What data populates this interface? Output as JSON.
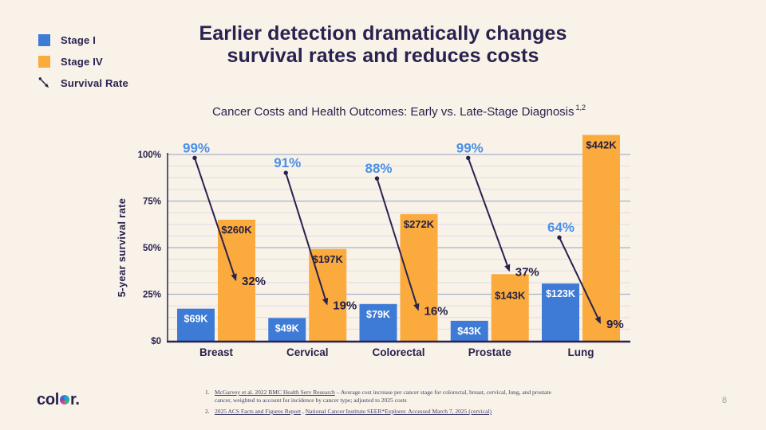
{
  "slide": {
    "title_lines": [
      "Earlier detection dramatically changes",
      "survival rates and reduces costs"
    ],
    "page_number": "8",
    "logo": {
      "part1": "col",
      "part2": "r."
    }
  },
  "legend": {
    "items": [
      {
        "label": "Stage I",
        "swatch": "blue-square"
      },
      {
        "label": "Stage IV",
        "swatch": "orange-square"
      },
      {
        "label": "Survival Rate",
        "swatch": "diagonal-arrow"
      }
    ]
  },
  "chart_data": {
    "type": "bar",
    "title": "Cancer Costs and Health Outcomes: Early vs. Late-Stage Diagnosis",
    "title_superscript": "1,2",
    "ylabel": "5-year survival rate",
    "categories": [
      "Breast",
      "Cervical",
      "Colorectal",
      "Prostate",
      "Lung"
    ],
    "y_ticks": [
      {
        "label": "100%",
        "value": 100
      },
      {
        "label": "75%",
        "value": 75
      },
      {
        "label": "50%",
        "value": 50
      },
      {
        "label": "25%",
        "value": 25
      },
      {
        "label": "$0",
        "value": 0
      }
    ],
    "ylim": [
      0,
      100
    ],
    "grid": "on",
    "legend_position": "top-left",
    "cost_axis": {
      "unit": "USD thousands",
      "k_per_25pct": 100
    },
    "series": [
      {
        "name": "Stage I",
        "values": [
          69,
          49,
          79,
          43,
          123
        ],
        "labels": [
          "$69K",
          "$49K",
          "$79K",
          "$43K",
          "$123K"
        ],
        "color": "#3d7bd7"
      },
      {
        "name": "Stage IV",
        "values": [
          260,
          197,
          272,
          143,
          442
        ],
        "labels": [
          "$260K",
          "$197K",
          "$272K",
          "$143K",
          "$442K"
        ],
        "color": "#fbaa3d"
      }
    ],
    "survival_rate": {
      "early": [
        99,
        91,
        88,
        99,
        64
      ],
      "early_labels": [
        "99%",
        "91%",
        "88%",
        "99%",
        "64%"
      ],
      "late": [
        32,
        19,
        16,
        37,
        9
      ],
      "late_labels": [
        "32%",
        "19%",
        "16%",
        "37%",
        "9%"
      ]
    }
  },
  "footnotes": [
    {
      "number": "1.",
      "link_text": "McGarvey et al. 2022 BMC Health Serv Research",
      "text": " – Average cost increase per cancer stage for colorectal, breast, cervical, lung, and prostate cancer, weighted to account for incidence by cancer type; adjusted to 2025 costs"
    },
    {
      "number": "2.",
      "link1_text": "2025 ACS Facts and Figures Report",
      "separator": " , ",
      "link2_text": "National Cancer Institute SEER*Explorer. Accessed March 7, 2025 (cervical)"
    }
  ],
  "colors": {
    "background": "#f9f2e8",
    "navy": "#29224f",
    "stage1_blue": "#3d7bd7",
    "stage4_orange": "#fbaa3d",
    "survival_early_blue": "#4a90e8",
    "grid_major": "#a6b2cc",
    "grid_minor": "#dfdce6",
    "axis": "#29224f",
    "bar_label_on_blue": "#ffffff",
    "bar_label_on_orange": "#221e45",
    "footnote_text": "#43406a",
    "page_number_gray": "#9aa29c"
  }
}
